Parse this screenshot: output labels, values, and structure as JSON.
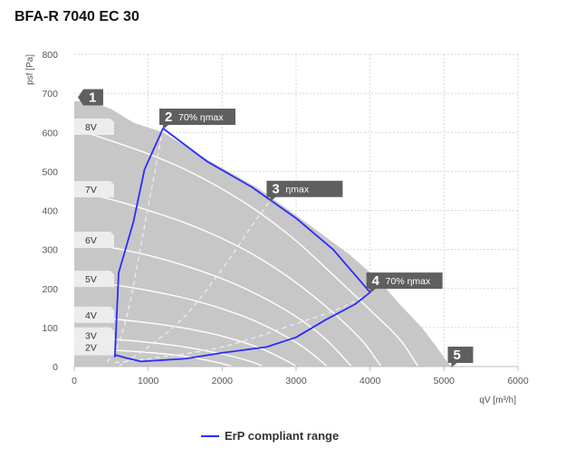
{
  "title": "BFA-R 7040 EC 30",
  "legend": {
    "label": "ErP compliant range",
    "color": "#2b2bff"
  },
  "colors": {
    "area": "#c7c7c7",
    "curve": "#ffffff",
    "dashed": "#eeeeee",
    "erp": "#2b2bff",
    "marker": "#5f5f5f",
    "speed_tag": "#eeeeee",
    "grid": "#d8d8d8"
  },
  "chart_data": {
    "type": "line",
    "title": "BFA-R 7040 EC 30",
    "xlabel": "qV [m³/h]",
    "ylabel": "psf [Pa]",
    "xlim": [
      0,
      6000
    ],
    "ylim": [
      0,
      800
    ],
    "x_ticks": [
      "0",
      "1000",
      "2000",
      "3000",
      "4000",
      "5000",
      "6000"
    ],
    "y_ticks": [
      "0",
      "100",
      "200",
      "300",
      "400",
      "500",
      "600",
      "700",
      "800"
    ],
    "grid": true,
    "legend_position": "bottom",
    "envelope": [
      [
        0,
        680
      ],
      [
        200,
        680
      ],
      [
        500,
        660
      ],
      [
        800,
        625
      ],
      [
        1200,
        600
      ],
      [
        1800,
        530
      ],
      [
        2500,
        455
      ],
      [
        3200,
        360
      ],
      [
        3700,
        290
      ],
      [
        4100,
        225
      ],
      [
        4400,
        160
      ],
      [
        4700,
        100
      ],
      [
        4900,
        50
      ],
      [
        5050,
        10
      ],
      [
        5100,
        0
      ],
      [
        0,
        0
      ]
    ],
    "speed_curves": [
      {
        "name": "8V",
        "points": [
          [
            0,
            610
          ],
          [
            500,
            578
          ],
          [
            1000,
            545
          ],
          [
            1500,
            505
          ],
          [
            2000,
            455
          ],
          [
            2500,
            395
          ],
          [
            3000,
            322
          ],
          [
            3500,
            235
          ],
          [
            4000,
            145
          ],
          [
            4400,
            70
          ],
          [
            4650,
            0
          ]
        ]
      },
      {
        "name": "7V",
        "points": [
          [
            0,
            450
          ],
          [
            500,
            428
          ],
          [
            1000,
            400
          ],
          [
            1500,
            368
          ],
          [
            2000,
            328
          ],
          [
            2500,
            278
          ],
          [
            3000,
            215
          ],
          [
            3500,
            138
          ],
          [
            3900,
            65
          ],
          [
            4150,
            0
          ]
        ]
      },
      {
        "name": "6V",
        "points": [
          [
            0,
            320
          ],
          [
            500,
            305
          ],
          [
            1000,
            285
          ],
          [
            1500,
            258
          ],
          [
            2000,
            225
          ],
          [
            2500,
            182
          ],
          [
            3000,
            128
          ],
          [
            3400,
            70
          ],
          [
            3750,
            0
          ]
        ]
      },
      {
        "name": "5V",
        "points": [
          [
            0,
            220
          ],
          [
            500,
            210
          ],
          [
            1000,
            195
          ],
          [
            1500,
            175
          ],
          [
            2000,
            148
          ],
          [
            2500,
            112
          ],
          [
            3000,
            62
          ],
          [
            3300,
            20
          ],
          [
            3420,
            0
          ]
        ]
      },
      {
        "name": "4V",
        "points": [
          [
            0,
            128
          ],
          [
            500,
            122
          ],
          [
            1000,
            112
          ],
          [
            1500,
            98
          ],
          [
            2000,
            78
          ],
          [
            2500,
            48
          ],
          [
            2900,
            12
          ],
          [
            3000,
            0
          ]
        ]
      },
      {
        "name": "3V",
        "points": [
          [
            0,
            75
          ],
          [
            500,
            70
          ],
          [
            1000,
            62
          ],
          [
            1500,
            50
          ],
          [
            2000,
            32
          ],
          [
            2400,
            12
          ],
          [
            2550,
            0
          ]
        ]
      },
      {
        "name": "2V",
        "points": [
          [
            0,
            45
          ],
          [
            500,
            42
          ],
          [
            1000,
            36
          ],
          [
            1500,
            26
          ],
          [
            1900,
            12
          ],
          [
            2150,
            0
          ]
        ]
      }
    ],
    "efficiency_curves": [
      {
        "name": "70% ηmax (left)",
        "points": [
          [
            450,
            12
          ],
          [
            600,
            60
          ],
          [
            750,
            160
          ],
          [
            900,
            310
          ],
          [
            1050,
            460
          ],
          [
            1200,
            610
          ]
        ]
      },
      {
        "name": "ηmax",
        "points": [
          [
            600,
            0
          ],
          [
            1000,
            50
          ],
          [
            1500,
            130
          ],
          [
            2000,
            250
          ],
          [
            2400,
            360
          ],
          [
            2650,
            425
          ]
        ]
      },
      {
        "name": "70% ηmax (right)",
        "points": [
          [
            550,
            10
          ],
          [
            1000,
            20
          ],
          [
            2000,
            50
          ],
          [
            3000,
            110
          ],
          [
            3600,
            150
          ],
          [
            4000,
            190
          ]
        ]
      }
    ],
    "erp_range": [
      [
        550,
        25
      ],
      [
        600,
        240
      ],
      [
        800,
        370
      ],
      [
        950,
        505
      ],
      [
        1200,
        610
      ],
      [
        1800,
        525
      ],
      [
        2400,
        460
      ],
      [
        3000,
        380
      ],
      [
        3500,
        300
      ],
      [
        4000,
        190
      ],
      [
        3800,
        160
      ],
      [
        3400,
        120
      ],
      [
        3000,
        75
      ],
      [
        2600,
        50
      ],
      [
        2000,
        35
      ],
      [
        1500,
        20
      ],
      [
        900,
        13
      ],
      [
        700,
        22
      ],
      [
        550,
        30
      ]
    ],
    "operating_points": [
      {
        "label": "1",
        "text": "",
        "x": 0,
        "y": 690
      },
      {
        "label": "2",
        "text": "70% ηmax",
        "x": 1200,
        "y": 610
      },
      {
        "label": "3",
        "text": "ηmax",
        "x": 2650,
        "y": 425
      },
      {
        "label": "4",
        "text": "70% ηmax",
        "x": 4000,
        "y": 190
      },
      {
        "label": "5",
        "text": "",
        "x": 5100,
        "y": 0
      }
    ]
  }
}
